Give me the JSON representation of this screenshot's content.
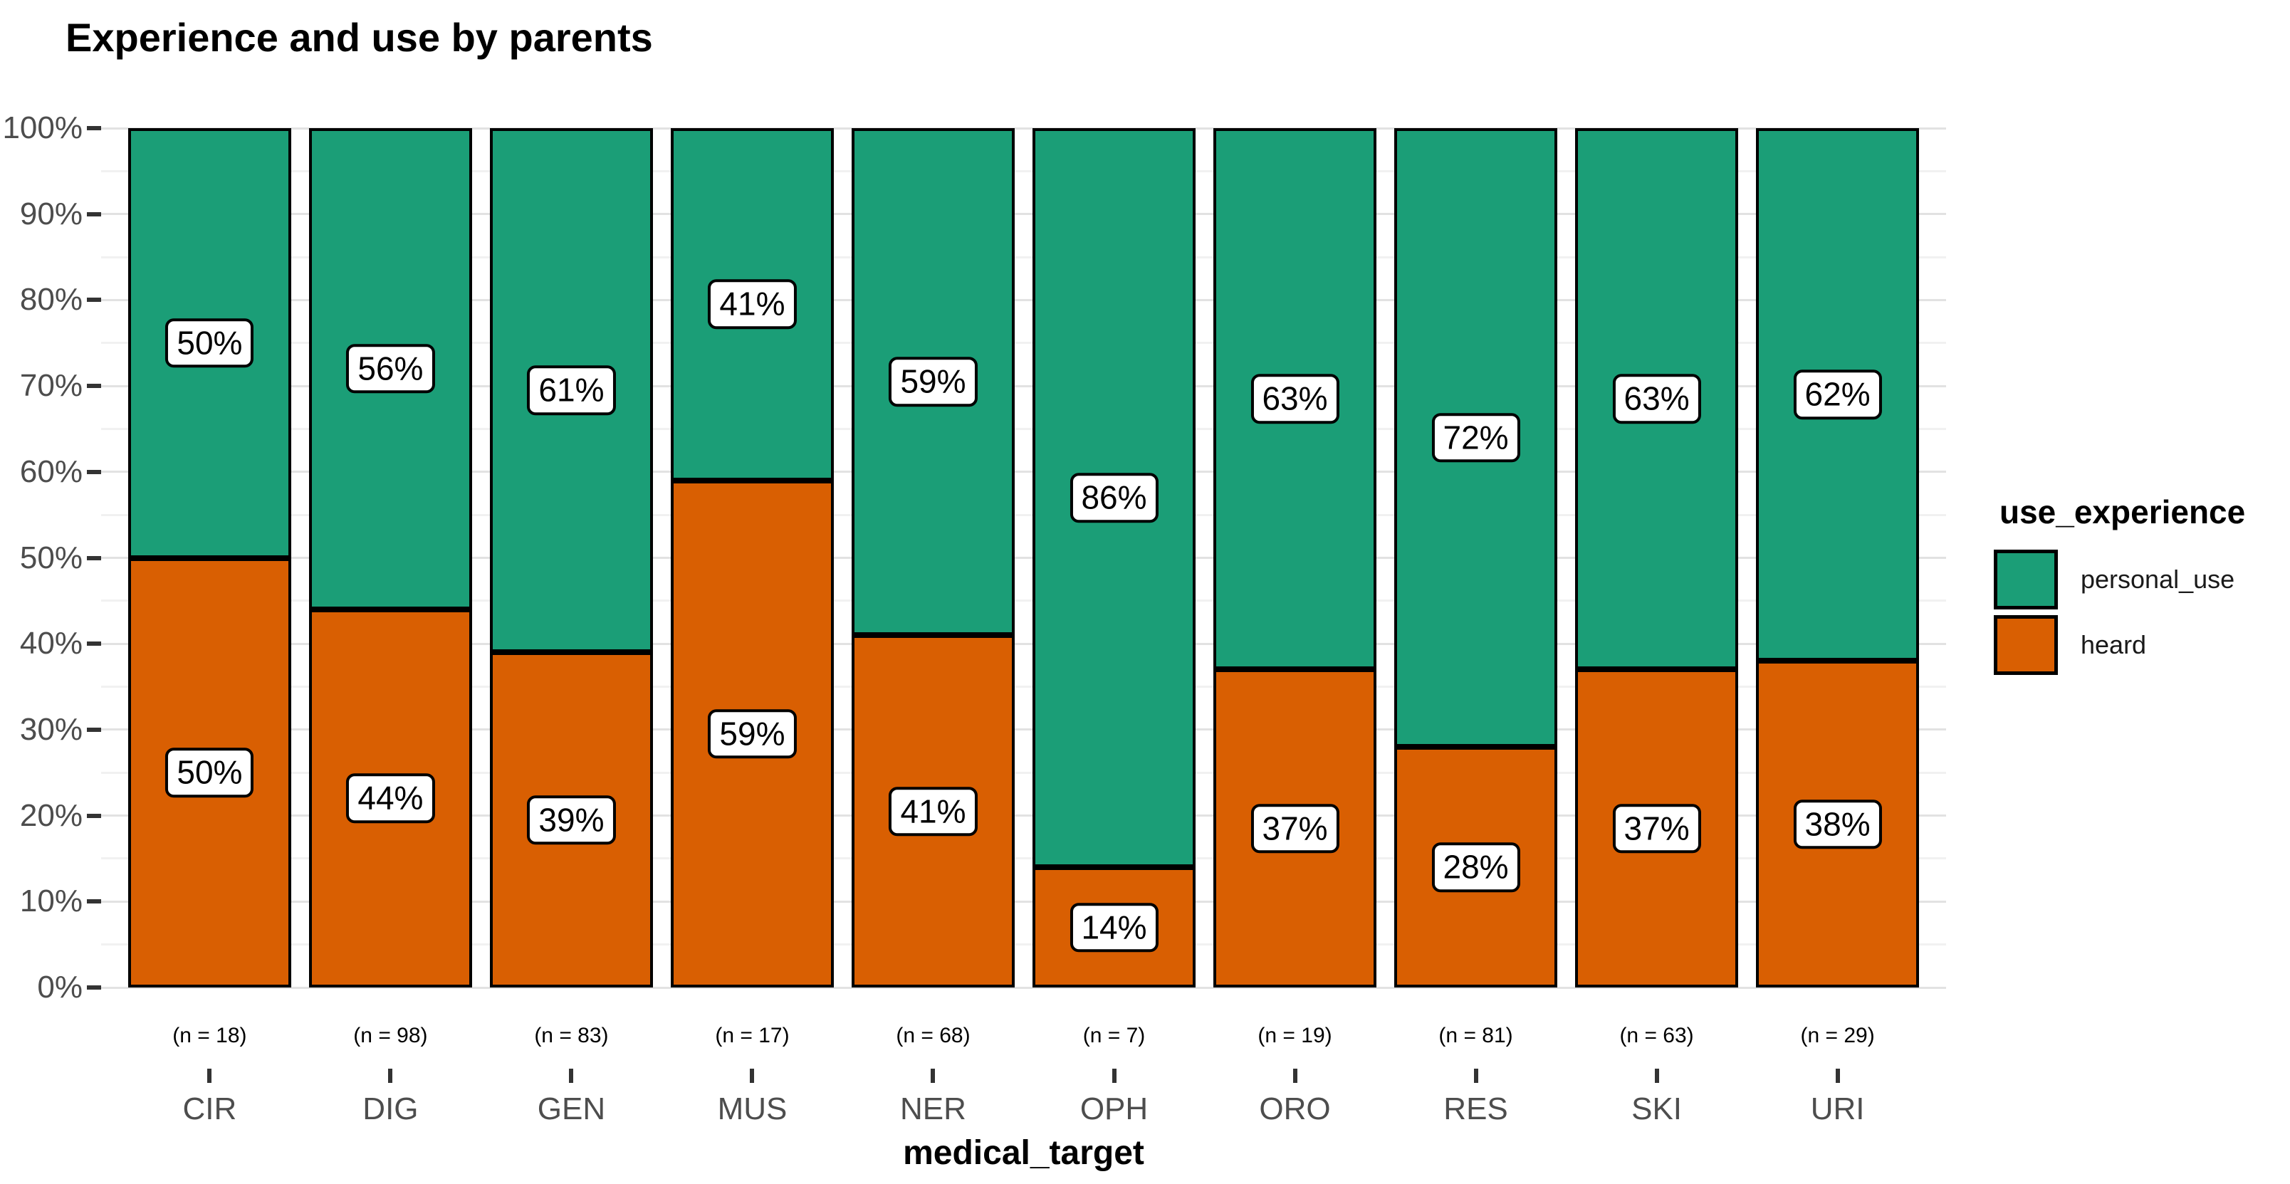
{
  "chart": {
    "title": "Experience and use by parents",
    "xlabel": "medical_target",
    "legend_title": "use_experience"
  },
  "chart_data": {
    "type": "bar",
    "stacked": true,
    "percent_scale": true,
    "title": "Experience and use by parents",
    "xlabel": "medical_target",
    "ylabel": "",
    "legend_title": "use_experience",
    "legend_position": "right",
    "grid": true,
    "ylim": [
      0,
      100
    ],
    "categories": [
      "CIR",
      "DIG",
      "GEN",
      "MUS",
      "NER",
      "OPH",
      "ORO",
      "RES",
      "SKI",
      "URI"
    ],
    "n_labels": [
      "(n = 18)",
      "(n = 98)",
      "(n = 83)",
      "(n = 17)",
      "(n = 68)",
      "(n = 7)",
      "(n = 19)",
      "(n = 81)",
      "(n = 63)",
      "(n = 29)"
    ],
    "series": [
      {
        "name": "personal_use",
        "color": "#1B9E77",
        "values": [
          50,
          56,
          61,
          41,
          59,
          86,
          63,
          72,
          63,
          62
        ]
      },
      {
        "name": "heard",
        "color": "#D95F02",
        "values": [
          50,
          44,
          39,
          59,
          41,
          14,
          37,
          28,
          37,
          38
        ]
      }
    ],
    "bar_value_labels": {
      "personal_use": [
        "50%",
        "56%",
        "61%",
        "41%",
        "59%",
        "86%",
        "63%",
        "72%",
        "63%",
        "62%"
      ],
      "heard": [
        "50%",
        "44%",
        "39%",
        "59%",
        "41%",
        "14%",
        "37%",
        "28%",
        "37%",
        "38%"
      ]
    },
    "yticks": [
      "0%",
      "10%",
      "20%",
      "30%",
      "40%",
      "50%",
      "60%",
      "70%",
      "80%",
      "90%",
      "100%"
    ]
  }
}
